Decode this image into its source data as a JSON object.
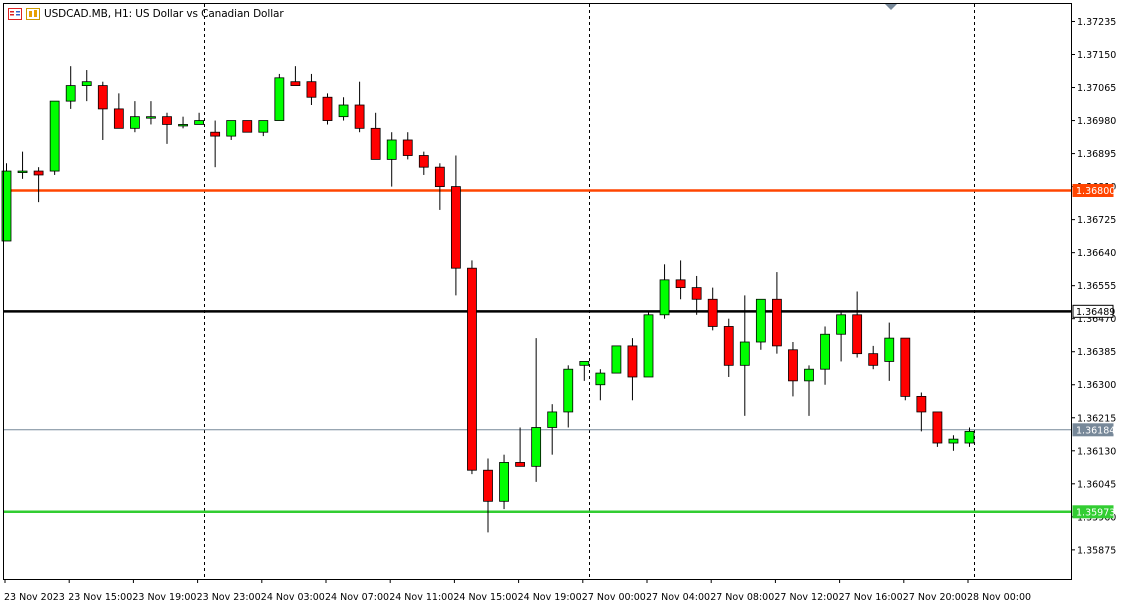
{
  "window": {
    "symbol_title": "USDCAD.MB, H1:  US Dollar vs Canadian Dollar"
  },
  "icons": [
    "candles-view-icon",
    "one-click-trading-icon"
  ],
  "colors": {
    "bull": "#00ff00",
    "bear": "#ff0000",
    "wick": "#000000",
    "resistance_line": "#ff4500",
    "pivot_line": "#000000",
    "support_line": "#32cd32",
    "bid_line": "#778899",
    "grid": "#000000"
  },
  "chart_data": {
    "type": "candlestick",
    "ylim": [
      1.358,
      1.3728
    ],
    "y_ticks": [
      "1.37235",
      "1.37150",
      "1.37065",
      "1.36980",
      "1.36895",
      "1.36810",
      "1.36725",
      "1.36640",
      "1.36555",
      "1.36470",
      "1.36385",
      "1.36300",
      "1.36215",
      "1.36130",
      "1.36045",
      "1.35960",
      "1.35875"
    ],
    "x_labels": [
      "23 Nov 2023",
      "23 Nov 15:00",
      "23 Nov 19:00",
      "23 Nov 23:00",
      "24 Nov 03:00",
      "24 Nov 07:00",
      "24 Nov 11:00",
      "24 Nov 15:00",
      "24 Nov 19:00",
      "27 Nov 00:00",
      "27 Nov 04:00",
      "27 Nov 08:00",
      "27 Nov 12:00",
      "27 Nov 16:00",
      "27 Nov 20:00",
      "28 Nov 00:00"
    ],
    "session_separators": [
      "23 Nov 23:00",
      "27 Nov 00:00",
      "28 Nov 00:00"
    ],
    "horizontal_lines": [
      {
        "label": "1.36800",
        "price": 1.368,
        "role": "resistance"
      },
      {
        "label": "1.36489",
        "price": 1.36489,
        "role": "pivot"
      },
      {
        "label": "1.35973",
        "price": 1.35973,
        "role": "support"
      },
      {
        "label": "1.36184",
        "price": 1.36184,
        "role": "bid"
      }
    ],
    "candles": [
      {
        "o": 1.3667,
        "h": 1.3687,
        "l": 1.3667,
        "c": 1.3685
      },
      {
        "o": 1.3685,
        "h": 1.369,
        "l": 1.3683,
        "c": 1.3685
      },
      {
        "o": 1.3685,
        "h": 1.3686,
        "l": 1.3677,
        "c": 1.3684
      },
      {
        "o": 1.3685,
        "h": 1.3703,
        "l": 1.3684,
        "c": 1.3703
      },
      {
        "o": 1.3703,
        "h": 1.3712,
        "l": 1.3701,
        "c": 1.3707
      },
      {
        "o": 1.3707,
        "h": 1.3711,
        "l": 1.3703,
        "c": 1.3708
      },
      {
        "o": 1.3707,
        "h": 1.3708,
        "l": 1.3693,
        "c": 1.3701
      },
      {
        "o": 1.3701,
        "h": 1.3705,
        "l": 1.3696,
        "c": 1.3696
      },
      {
        "o": 1.3696,
        "h": 1.3703,
        "l": 1.3695,
        "c": 1.3699
      },
      {
        "o": 1.3699,
        "h": 1.3703,
        "l": 1.3697,
        "c": 1.3699
      },
      {
        "o": 1.3699,
        "h": 1.37,
        "l": 1.3692,
        "c": 1.3697
      },
      {
        "o": 1.3697,
        "h": 1.3699,
        "l": 1.3696,
        "c": 1.3697
      },
      {
        "o": 1.3697,
        "h": 1.37,
        "l": 1.3697,
        "c": 1.3698
      },
      {
        "o": 1.3695,
        "h": 1.3698,
        "l": 1.3686,
        "c": 1.3694
      },
      {
        "o": 1.3694,
        "h": 1.3698,
        "l": 1.3693,
        "c": 1.3698
      },
      {
        "o": 1.3698,
        "h": 1.3698,
        "l": 1.3695,
        "c": 1.3695
      },
      {
        "o": 1.3695,
        "h": 1.3698,
        "l": 1.3694,
        "c": 1.3698
      },
      {
        "o": 1.3698,
        "h": 1.371,
        "l": 1.3698,
        "c": 1.3709
      },
      {
        "o": 1.3708,
        "h": 1.3712,
        "l": 1.3707,
        "c": 1.3707
      },
      {
        "o": 1.3708,
        "h": 1.371,
        "l": 1.3702,
        "c": 1.3704
      },
      {
        "o": 1.3704,
        "h": 1.3705,
        "l": 1.3697,
        "c": 1.3698
      },
      {
        "o": 1.3699,
        "h": 1.3704,
        "l": 1.3698,
        "c": 1.3702
      },
      {
        "o": 1.3702,
        "h": 1.3708,
        "l": 1.3695,
        "c": 1.3696
      },
      {
        "o": 1.3696,
        "h": 1.37,
        "l": 1.3688,
        "c": 1.3688
      },
      {
        "o": 1.3688,
        "h": 1.3695,
        "l": 1.3681,
        "c": 1.3693
      },
      {
        "o": 1.3693,
        "h": 1.3695,
        "l": 1.3688,
        "c": 1.3689
      },
      {
        "o": 1.3689,
        "h": 1.369,
        "l": 1.3684,
        "c": 1.3686
      },
      {
        "o": 1.3686,
        "h": 1.3687,
        "l": 1.3675,
        "c": 1.3681
      },
      {
        "o": 1.3681,
        "h": 1.3689,
        "l": 1.3653,
        "c": 1.366
      },
      {
        "o": 1.366,
        "h": 1.3662,
        "l": 1.3607,
        "c": 1.3608
      },
      {
        "o": 1.3608,
        "h": 1.3611,
        "l": 1.3592,
        "c": 1.36
      },
      {
        "o": 1.36,
        "h": 1.3612,
        "l": 1.3598,
        "c": 1.361
      },
      {
        "o": 1.361,
        "h": 1.3619,
        "l": 1.3609,
        "c": 1.3609
      },
      {
        "o": 1.3609,
        "h": 1.3642,
        "l": 1.3605,
        "c": 1.3619
      },
      {
        "o": 1.3619,
        "h": 1.3625,
        "l": 1.3612,
        "c": 1.3623
      },
      {
        "o": 1.3623,
        "h": 1.3635,
        "l": 1.3619,
        "c": 1.3634
      },
      {
        "o": 1.3635,
        "h": 1.3636,
        "l": 1.3631,
        "c": 1.3636
      },
      {
        "o": 1.363,
        "h": 1.3634,
        "l": 1.3626,
        "c": 1.3633
      },
      {
        "o": 1.3633,
        "h": 1.364,
        "l": 1.3633,
        "c": 1.364
      },
      {
        "o": 1.364,
        "h": 1.3642,
        "l": 1.3626,
        "c": 1.3632
      },
      {
        "o": 1.3632,
        "h": 1.3649,
        "l": 1.3632,
        "c": 1.3648
      },
      {
        "o": 1.3648,
        "h": 1.3661,
        "l": 1.3647,
        "c": 1.3657
      },
      {
        "o": 1.3657,
        "h": 1.3662,
        "l": 1.3652,
        "c": 1.3655
      },
      {
        "o": 1.3655,
        "h": 1.3658,
        "l": 1.3648,
        "c": 1.3652
      },
      {
        "o": 1.3652,
        "h": 1.3655,
        "l": 1.3644,
        "c": 1.3645
      },
      {
        "o": 1.3645,
        "h": 1.3647,
        "l": 1.3632,
        "c": 1.3635
      },
      {
        "o": 1.3635,
        "h": 1.3653,
        "l": 1.3622,
        "c": 1.3641
      },
      {
        "o": 1.3641,
        "h": 1.3652,
        "l": 1.3639,
        "c": 1.3652
      },
      {
        "o": 1.3652,
        "h": 1.3659,
        "l": 1.3638,
        "c": 1.364
      },
      {
        "o": 1.3639,
        "h": 1.3641,
        "l": 1.3627,
        "c": 1.3631
      },
      {
        "o": 1.3631,
        "h": 1.3635,
        "l": 1.3622,
        "c": 1.3634
      },
      {
        "o": 1.3634,
        "h": 1.3645,
        "l": 1.363,
        "c": 1.3643
      },
      {
        "o": 1.3643,
        "h": 1.3649,
        "l": 1.3636,
        "c": 1.3648
      },
      {
        "o": 1.3648,
        "h": 1.3654,
        "l": 1.3637,
        "c": 1.3638
      },
      {
        "o": 1.3638,
        "h": 1.364,
        "l": 1.3634,
        "c": 1.3635
      },
      {
        "o": 1.3636,
        "h": 1.3646,
        "l": 1.3631,
        "c": 1.3642
      },
      {
        "o": 1.3642,
        "h": 1.3642,
        "l": 1.3626,
        "c": 1.3627
      },
      {
        "o": 1.3627,
        "h": 1.3628,
        "l": 1.3618,
        "c": 1.3623
      },
      {
        "o": 1.3623,
        "h": 1.3623,
        "l": 1.3614,
        "c": 1.3615
      },
      {
        "o": 1.3615,
        "h": 1.3617,
        "l": 1.3613,
        "c": 1.3616
      },
      {
        "o": 1.3615,
        "h": 1.3619,
        "l": 1.3614,
        "c": 1.3618
      }
    ]
  }
}
